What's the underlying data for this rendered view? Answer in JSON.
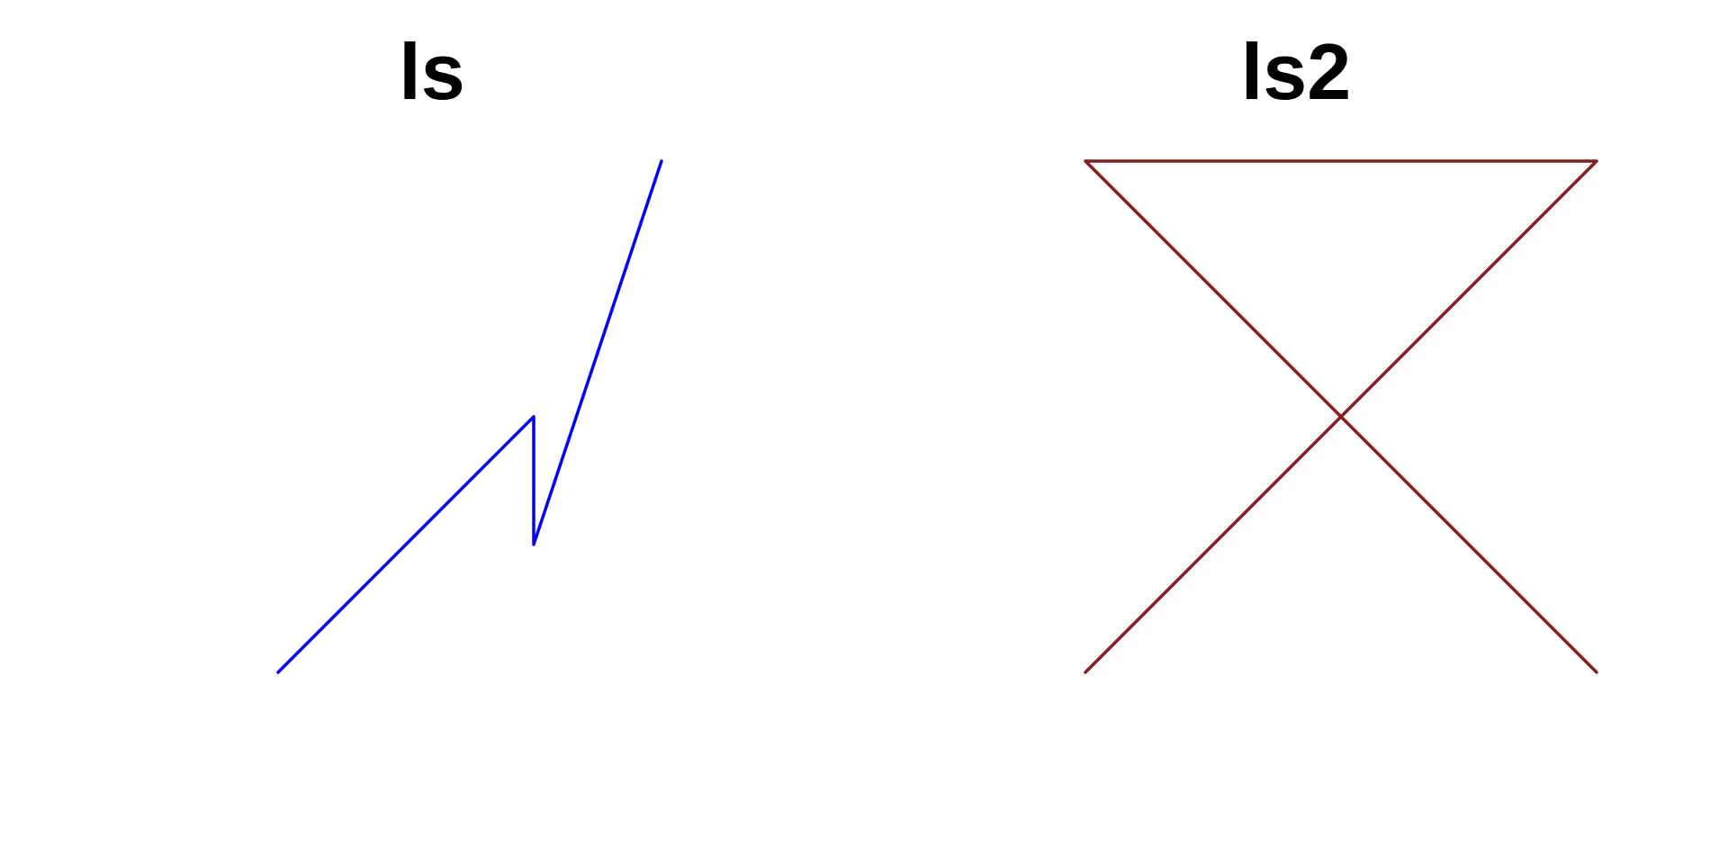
{
  "figures": [
    {
      "title": "ls",
      "color": "#0000ff",
      "path_points": [
        [
          0,
          0
        ],
        [
          2,
          2
        ],
        [
          2,
          1
        ],
        [
          3,
          4
        ]
      ]
    },
    {
      "title": "ls2",
      "color": "#8b1a1a",
      "path_points": [
        [
          0,
          0
        ],
        [
          4,
          4
        ],
        [
          0,
          4
        ],
        [
          4,
          0
        ]
      ]
    }
  ]
}
